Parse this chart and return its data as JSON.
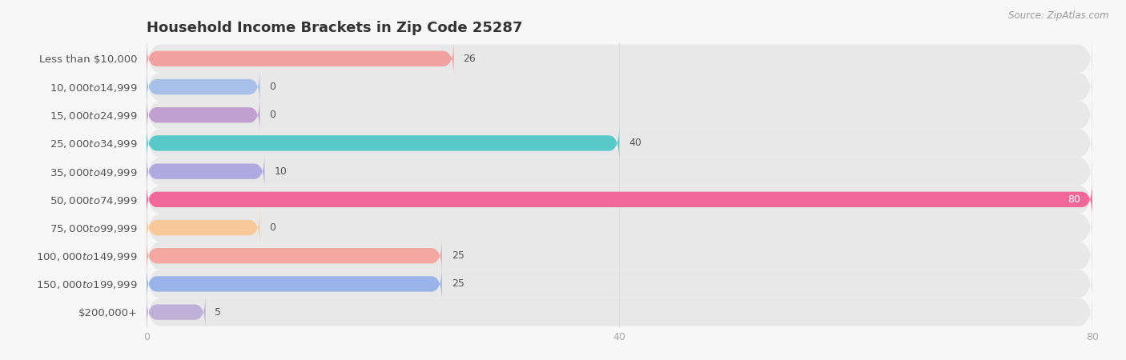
{
  "title": "Household Income Brackets in Zip Code 25287",
  "source": "Source: ZipAtlas.com",
  "categories": [
    "Less than $10,000",
    "$10,000 to $14,999",
    "$15,000 to $24,999",
    "$25,000 to $34,999",
    "$35,000 to $49,999",
    "$50,000 to $74,999",
    "$75,000 to $99,999",
    "$100,000 to $149,999",
    "$150,000 to $199,999",
    "$200,000+"
  ],
  "values": [
    26,
    0,
    0,
    40,
    10,
    80,
    0,
    25,
    25,
    5
  ],
  "bar_colors": [
    "#F2A0A0",
    "#A8C0E8",
    "#C0A0D0",
    "#58C8C8",
    "#B0A8E0",
    "#F06898",
    "#F8C898",
    "#F2A8A0",
    "#98B4E8",
    "#C0B0D8"
  ],
  "background_color": "#f7f7f7",
  "bar_bg_color": "#e8e8e8",
  "row_bg_color": "#f0f0f0",
  "xlim_max": 80,
  "xticks": [
    0,
    40,
    80
  ],
  "title_fontsize": 13,
  "label_fontsize": 9.5,
  "value_fontsize": 9,
  "bar_height": 0.55,
  "value_label_color_inside": "#ffffff",
  "value_label_color_outside": "#555555",
  "tick_color": "#aaaaaa",
  "grid_color": "#dddddd",
  "title_color": "#333333",
  "source_color": "#999999",
  "label_color": "#555555"
}
